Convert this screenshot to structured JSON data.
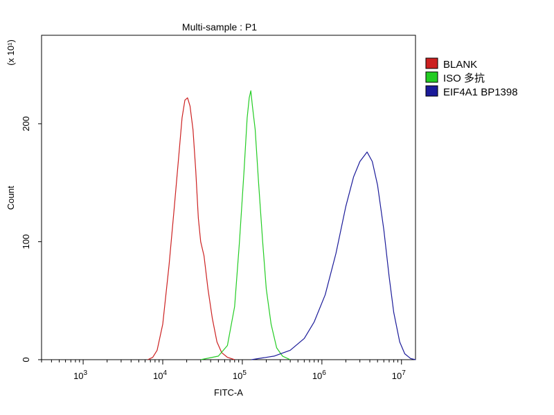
{
  "chart_data": {
    "type": "line",
    "title": "Multi-sample : P1",
    "xlabel": "FITC-A",
    "ylabel": "Count",
    "y_multiplier": "(x 10¹)",
    "xscale": "log",
    "xlim": [
      300,
      15000000
    ],
    "ylim": [
      0,
      275
    ],
    "y_ticks": [
      0,
      100,
      200
    ],
    "y_tick_labels": [
      "0",
      "100",
      "200"
    ],
    "x_tick_values": [
      1000,
      10000,
      100000,
      1000000,
      10000000
    ],
    "x_tick_labels": [
      {
        "base": "10",
        "exp": "3"
      },
      {
        "base": "10",
        "exp": "4"
      },
      {
        "base": "10",
        "exp": "5"
      },
      {
        "base": "10",
        "exp": "6"
      },
      {
        "base": "10",
        "exp": "7"
      }
    ],
    "grid": false,
    "legend_position": "right",
    "series": [
      {
        "name": "BLANK",
        "color": "#cc2020",
        "points": [
          [
            6500,
            0
          ],
          [
            7500,
            2
          ],
          [
            8500,
            8
          ],
          [
            10000,
            30
          ],
          [
            12000,
            80
          ],
          [
            14000,
            130
          ],
          [
            16000,
            175
          ],
          [
            17500,
            205
          ],
          [
            19000,
            220
          ],
          [
            20500,
            222
          ],
          [
            22000,
            215
          ],
          [
            24000,
            195
          ],
          [
            26000,
            160
          ],
          [
            28000,
            120
          ],
          [
            30000,
            100
          ],
          [
            33000,
            88
          ],
          [
            37000,
            60
          ],
          [
            42000,
            35
          ],
          [
            48000,
            15
          ],
          [
            55000,
            6
          ],
          [
            65000,
            2
          ],
          [
            80000,
            0
          ]
        ]
      },
      {
        "name": "ISO 多抗",
        "color": "#22cc22",
        "points": [
          [
            30000,
            0
          ],
          [
            50000,
            3
          ],
          [
            65000,
            12
          ],
          [
            80000,
            45
          ],
          [
            92000,
            100
          ],
          [
            105000,
            160
          ],
          [
            115000,
            205
          ],
          [
            122000,
            222
          ],
          [
            128000,
            228
          ],
          [
            134000,
            215
          ],
          [
            145000,
            195
          ],
          [
            160000,
            150
          ],
          [
            180000,
            100
          ],
          [
            200000,
            60
          ],
          [
            230000,
            30
          ],
          [
            270000,
            10
          ],
          [
            320000,
            3
          ],
          [
            400000,
            0
          ]
        ]
      },
      {
        "name": "EIF4A1 BP1398",
        "color": "#1a1a99",
        "points": [
          [
            130000,
            0
          ],
          [
            250000,
            3
          ],
          [
            400000,
            8
          ],
          [
            600000,
            18
          ],
          [
            800000,
            32
          ],
          [
            1100000,
            55
          ],
          [
            1500000,
            90
          ],
          [
            2000000,
            130
          ],
          [
            2500000,
            155
          ],
          [
            3000000,
            168
          ],
          [
            3700000,
            176
          ],
          [
            4300000,
            168
          ],
          [
            5000000,
            148
          ],
          [
            6000000,
            110
          ],
          [
            7000000,
            70
          ],
          [
            8000000,
            40
          ],
          [
            9500000,
            15
          ],
          [
            11000000,
            5
          ],
          [
            13000000,
            1
          ],
          [
            15000000,
            0
          ]
        ]
      }
    ]
  }
}
